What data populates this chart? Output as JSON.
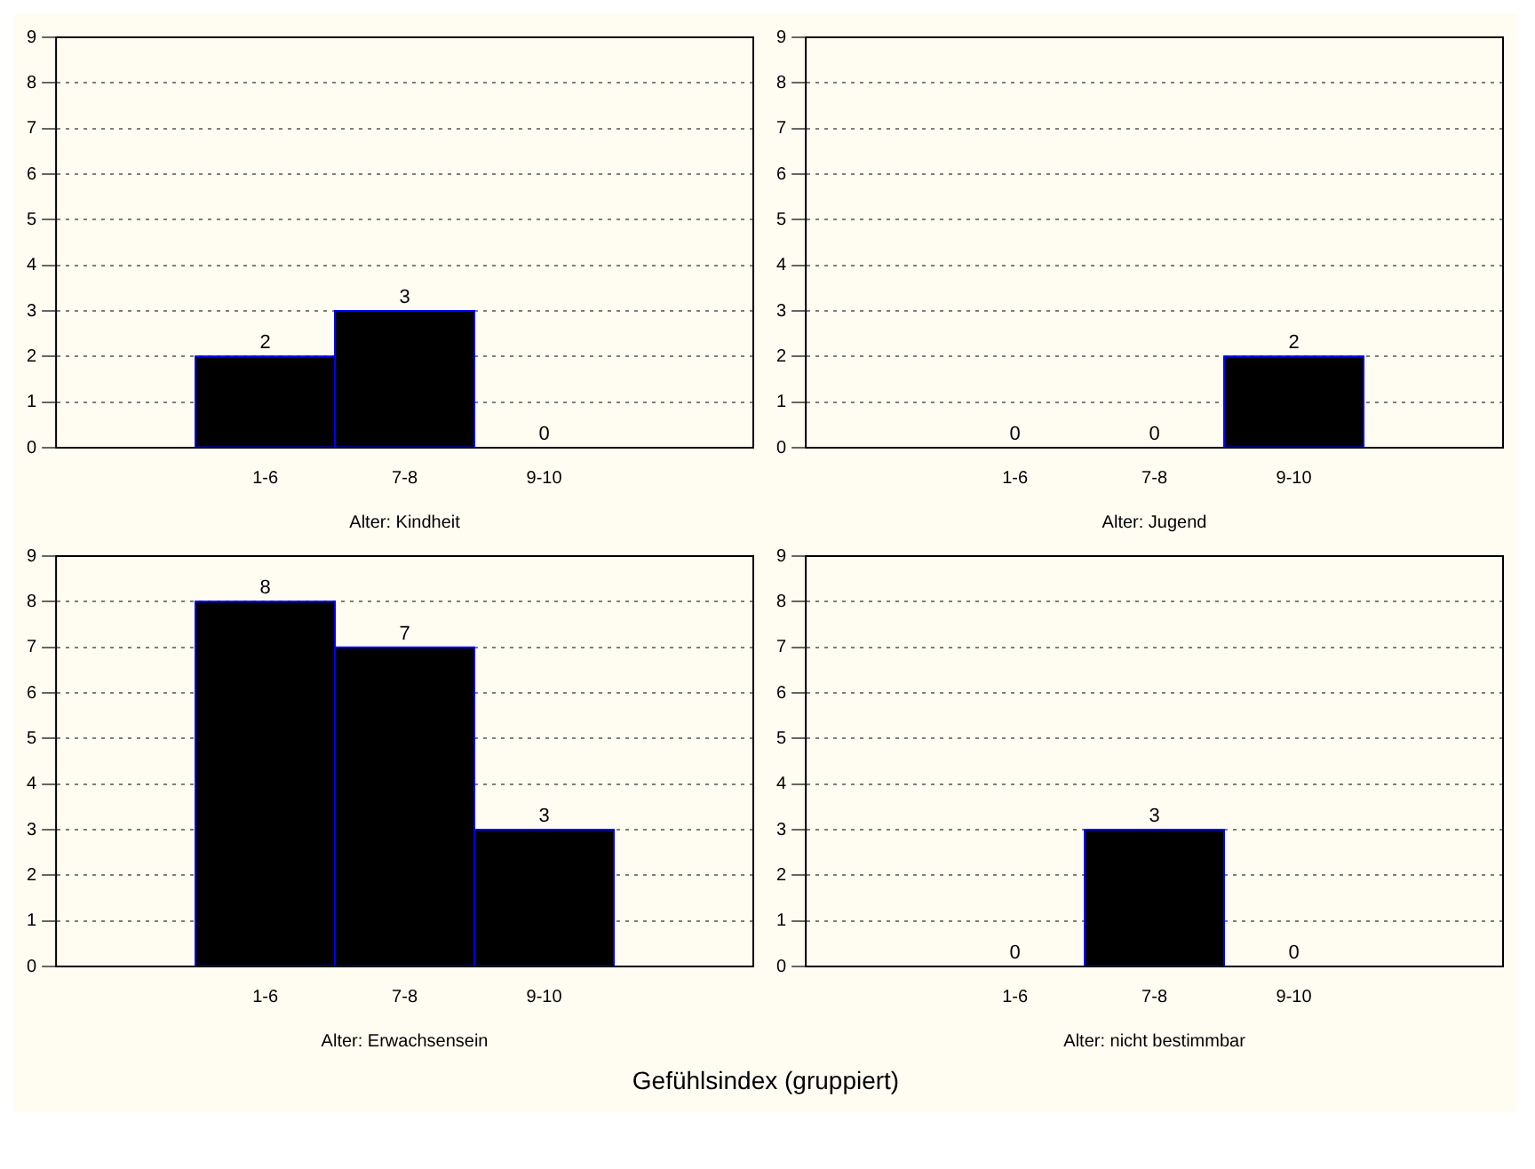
{
  "chart_data": [
    {
      "type": "bar",
      "xlabel": "Alter: Kindheit",
      "categories": [
        null,
        "1-6",
        "7-8",
        "9-10",
        null
      ],
      "values": [
        null,
        2,
        3,
        0,
        null
      ],
      "color": "#000000",
      "ylim": [
        0,
        9
      ],
      "yticks": [
        0,
        1,
        2,
        3,
        4,
        5,
        6,
        7,
        8,
        9
      ],
      "grid": "y",
      "data_labels": true
    },
    {
      "type": "bar",
      "xlabel": "Alter: Jugend",
      "categories": [
        null,
        "1-6",
        "7-8",
        "9-10",
        null
      ],
      "values": [
        null,
        0,
        0,
        2,
        null
      ],
      "color": "#000000",
      "ylim": [
        0,
        9
      ],
      "yticks": [
        0,
        1,
        2,
        3,
        4,
        5,
        6,
        7,
        8,
        9
      ],
      "grid": "y",
      "data_labels": true
    },
    {
      "type": "bar",
      "xlabel": "Alter: Erwachsensein",
      "categories": [
        null,
        "1-6",
        "7-8",
        "9-10",
        null
      ],
      "values": [
        null,
        8,
        7,
        3,
        null
      ],
      "color": "#000000",
      "ylim": [
        0,
        9
      ],
      "yticks": [
        0,
        1,
        2,
        3,
        4,
        5,
        6,
        7,
        8,
        9
      ],
      "grid": "y",
      "data_labels": true
    },
    {
      "type": "bar",
      "xlabel": "Alter: nicht bestimmbar",
      "categories": [
        null,
        "1-6",
        "7-8",
        "9-10",
        null
      ],
      "values": [
        null,
        0,
        3,
        0,
        null
      ],
      "color": "#000000",
      "ylim": [
        0,
        9
      ],
      "yticks": [
        0,
        1,
        2,
        3,
        4,
        5,
        6,
        7,
        8,
        9
      ],
      "grid": "y",
      "data_labels": true,
      "annotations": [
        "Gefühlsindex (gruppiert)"
      ]
    }
  ]
}
